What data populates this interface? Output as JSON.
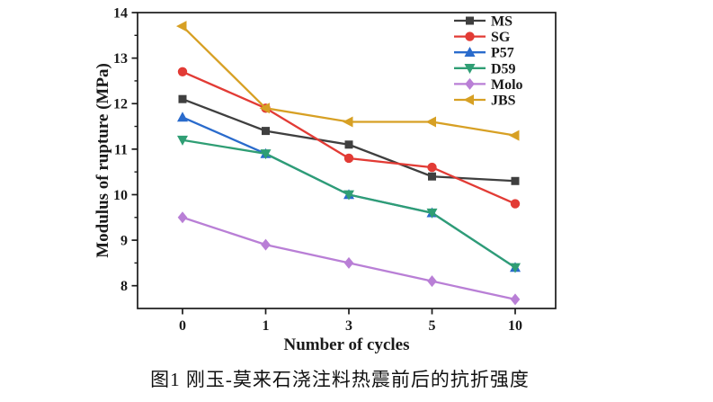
{
  "figure": {
    "caption": "图1  刚玉-莫来石浇注料热震前后的抗折强度"
  },
  "chart_data": {
    "type": "line",
    "title": "",
    "xlabel": "Number of cycles",
    "ylabel": "Modulus of rupture (MPa)",
    "categories": [
      "0",
      "1",
      "3",
      "5",
      "10"
    ],
    "ylim": [
      7.5,
      14
    ],
    "yticks": [
      8,
      9,
      10,
      11,
      12,
      13,
      14
    ],
    "minor_tick_step": 0.5,
    "grid": false,
    "legend_position": "inside-top-right",
    "axis_color": "#1a1a1a",
    "series": [
      {
        "name": "MS",
        "marker": "square",
        "color": "#3f3f3f",
        "values": [
          12.1,
          11.4,
          11.1,
          10.4,
          10.3
        ]
      },
      {
        "name": "SG",
        "marker": "circle",
        "color": "#e23b35",
        "values": [
          12.7,
          11.9,
          10.8,
          10.6,
          9.8
        ]
      },
      {
        "name": "P57",
        "marker": "triangle-up",
        "color": "#2a6bcc",
        "values": [
          11.7,
          10.9,
          10.0,
          9.6,
          8.4
        ]
      },
      {
        "name": "D59",
        "marker": "triangle-down",
        "color": "#2f9e74",
        "values": [
          11.2,
          10.9,
          10.0,
          9.6,
          8.4
        ]
      },
      {
        "name": "Molo",
        "marker": "diamond",
        "color": "#b97fd6",
        "values": [
          9.5,
          8.9,
          8.5,
          8.1,
          7.7
        ]
      },
      {
        "name": "JBS",
        "marker": "triangle-left",
        "color": "#d7a024",
        "values": [
          13.7,
          11.9,
          11.6,
          11.6,
          11.3
        ]
      }
    ]
  }
}
